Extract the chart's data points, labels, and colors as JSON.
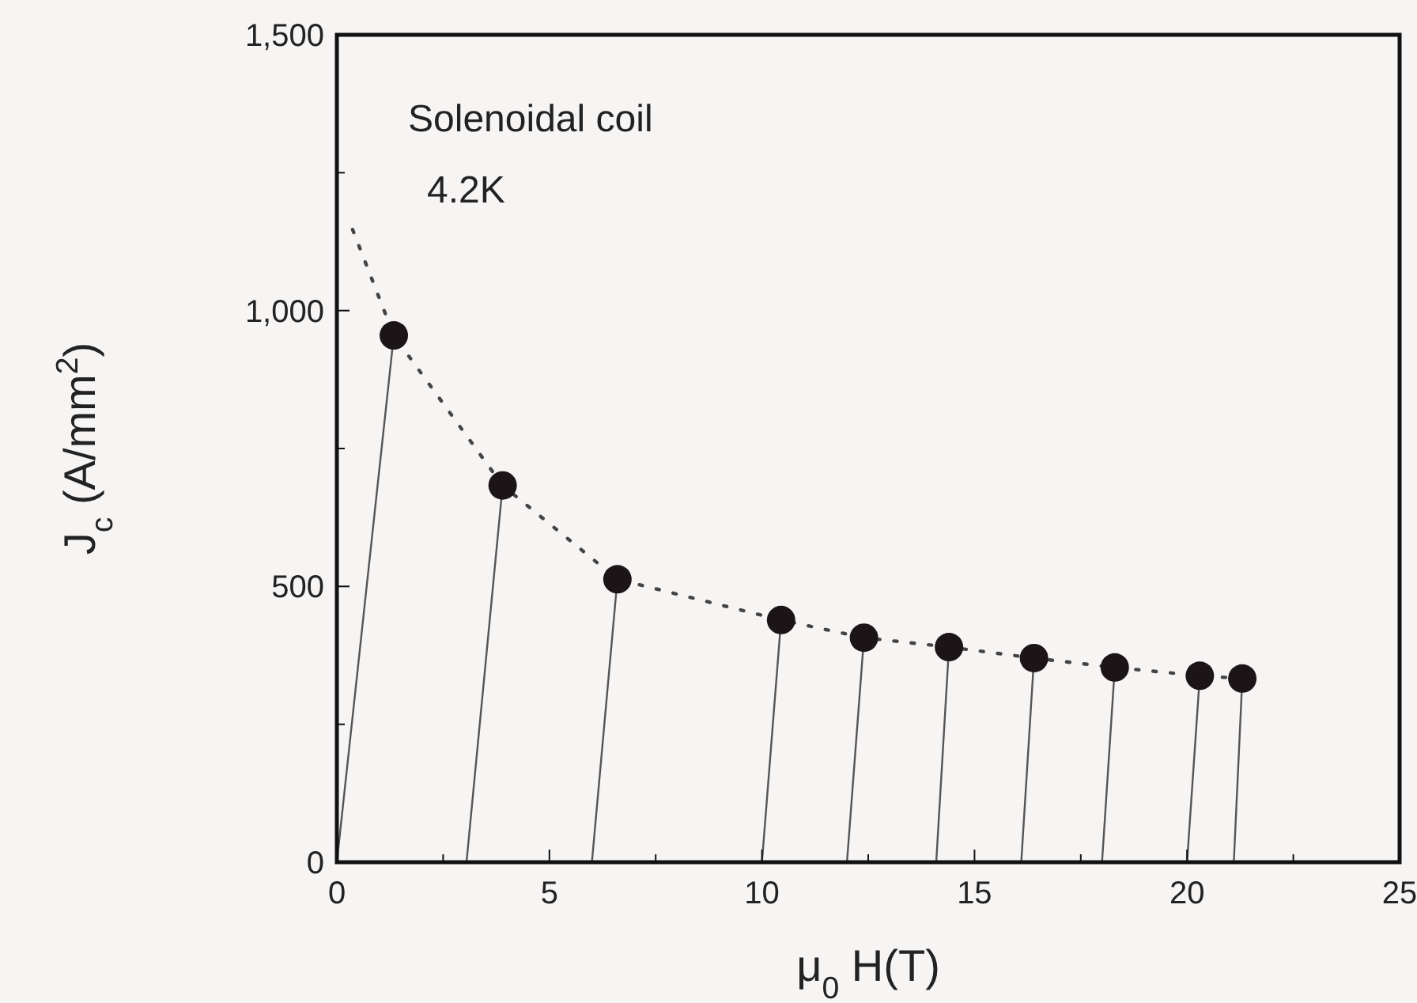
{
  "chart_data": {
    "type": "scatter",
    "xlabel": "μ$_{0}$ H(T)",
    "ylabel": "J$_{c}$ (A/mm$^{2}$)",
    "annotations": [
      "Solenoidal coil",
      "4.2K"
    ],
    "xlim": [
      0,
      25
    ],
    "ylim": [
      0,
      1500
    ],
    "xticks": [
      0,
      {
        "value": 2.5,
        "label": null
      },
      5,
      {
        "value": 7.5,
        "label": null
      },
      10,
      {
        "value": 12.5,
        "label": null
      },
      15,
      {
        "value": 17.5,
        "label": null
      },
      20,
      {
        "value": 22.5,
        "label": null
      },
      25
    ],
    "yticks": [
      {
        "value": 0,
        "label": "0"
      },
      {
        "value": 250,
        "label": null
      },
      {
        "value": 500,
        "label": "500"
      },
      {
        "value": 750,
        "label": null
      },
      {
        "value": 1000,
        "label": "1,000"
      },
      {
        "value": 1250,
        "label": null
      },
      {
        "value": 1500,
        "label": "1,500"
      }
    ],
    "grid": false,
    "series": [
      {
        "type": "line",
        "color": "#555555",
        "line_style": "solid",
        "x": [
          0,
          1.34
        ],
        "values": [
          0,
          955
        ]
      },
      {
        "type": "line",
        "color": "#555555",
        "line_style": "solid",
        "x": [
          3.05,
          3.9
        ],
        "values": [
          0,
          683
        ]
      },
      {
        "type": "line",
        "color": "#555555",
        "line_style": "solid",
        "x": [
          6.0,
          6.6
        ],
        "values": [
          0,
          513
        ]
      },
      {
        "type": "line",
        "color": "#555555",
        "line_style": "solid",
        "x": [
          10.0,
          10.45
        ],
        "values": [
          0,
          439
        ]
      },
      {
        "type": "line",
        "color": "#555555",
        "line_style": "solid",
        "x": [
          12.0,
          12.4
        ],
        "values": [
          0,
          407
        ]
      },
      {
        "type": "line",
        "color": "#555555",
        "line_style": "solid",
        "x": [
          14.1,
          14.4
        ],
        "values": [
          0,
          390
        ]
      },
      {
        "type": "line",
        "color": "#555555",
        "line_style": "solid",
        "x": [
          16.1,
          16.4
        ],
        "values": [
          0,
          370
        ]
      },
      {
        "type": "line",
        "color": "#555555",
        "line_style": "solid",
        "x": [
          18.0,
          18.3
        ],
        "values": [
          0,
          353
        ]
      },
      {
        "type": "line",
        "color": "#555555",
        "line_style": "solid",
        "x": [
          20.0,
          20.3
        ],
        "values": [
          0,
          338
        ]
      },
      {
        "type": "line",
        "color": "#555555",
        "line_style": "solid",
        "x": [
          21.1,
          21.3
        ],
        "values": [
          0,
          333
        ]
      },
      {
        "type": "line",
        "color": "#444444",
        "line_style": "dotted",
        "x": [
          0.37,
          1.34,
          3.9,
          6.6,
          10.45,
          12.4,
          14.4,
          16.4,
          18.3,
          20.3,
          21.3
        ],
        "values": [
          1147,
          955,
          683,
          513,
          439,
          407,
          390,
          370,
          353,
          338,
          333
        ]
      },
      {
        "color": "#1c1518",
        "marker": "circle",
        "x": [
          1.34,
          3.9,
          6.6,
          10.45,
          12.4,
          14.4,
          16.4,
          18.3,
          20.3,
          21.3
        ],
        "values": [
          955,
          683,
          513,
          439,
          407,
          390,
          370,
          353,
          338,
          333
        ]
      }
    ]
  }
}
